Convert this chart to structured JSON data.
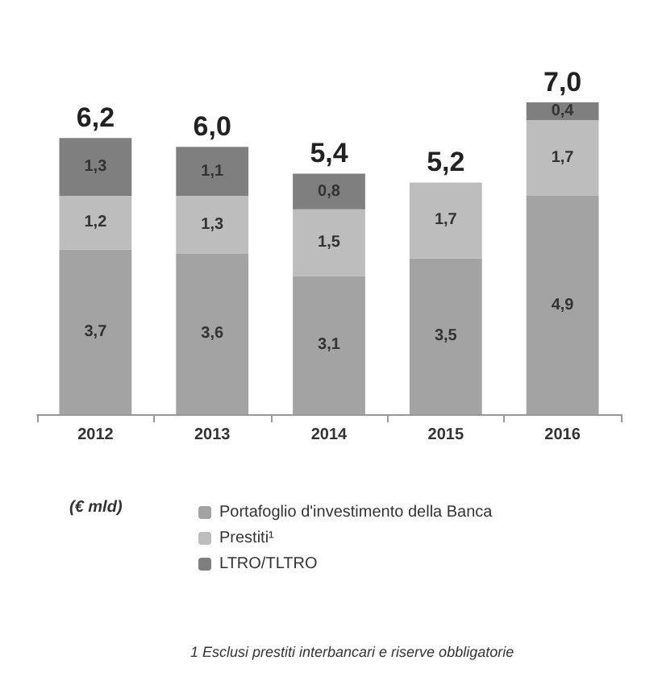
{
  "chart_data": {
    "type": "bar",
    "stacked": true,
    "categories": [
      "2012",
      "2013",
      "2014",
      "2015",
      "2016"
    ],
    "series": [
      {
        "name": "Portafoglio d'investimento della Banca",
        "color": "#a3a3a3",
        "values": [
          3.7,
          3.6,
          3.1,
          3.5,
          4.9
        ],
        "value_labels": [
          "3,7",
          "3,6",
          "3,1",
          "3,5",
          "4,9"
        ]
      },
      {
        "name": "Prestiti¹",
        "color": "#bdbdbd",
        "values": [
          1.2,
          1.3,
          1.5,
          1.7,
          1.7
        ],
        "value_labels": [
          "1,2",
          "1,3",
          "1,5",
          "1,7",
          "1,7"
        ]
      },
      {
        "name": "LTRO/TLTRO",
        "color": "#7f7f7f",
        "values": [
          1.3,
          1.1,
          0.8,
          null,
          0.4
        ],
        "value_labels": [
          "1,3",
          "1,1",
          "0,8",
          null,
          "0,4"
        ]
      }
    ],
    "totals": [
      "6,2",
      "6,0",
      "5,4",
      "5,2",
      "7,0"
    ],
    "legend": "bottom",
    "annotations": [
      "(€ mld)",
      "1 Esclusi prestiti interbancari e riserve obbligatorie"
    ]
  }
}
